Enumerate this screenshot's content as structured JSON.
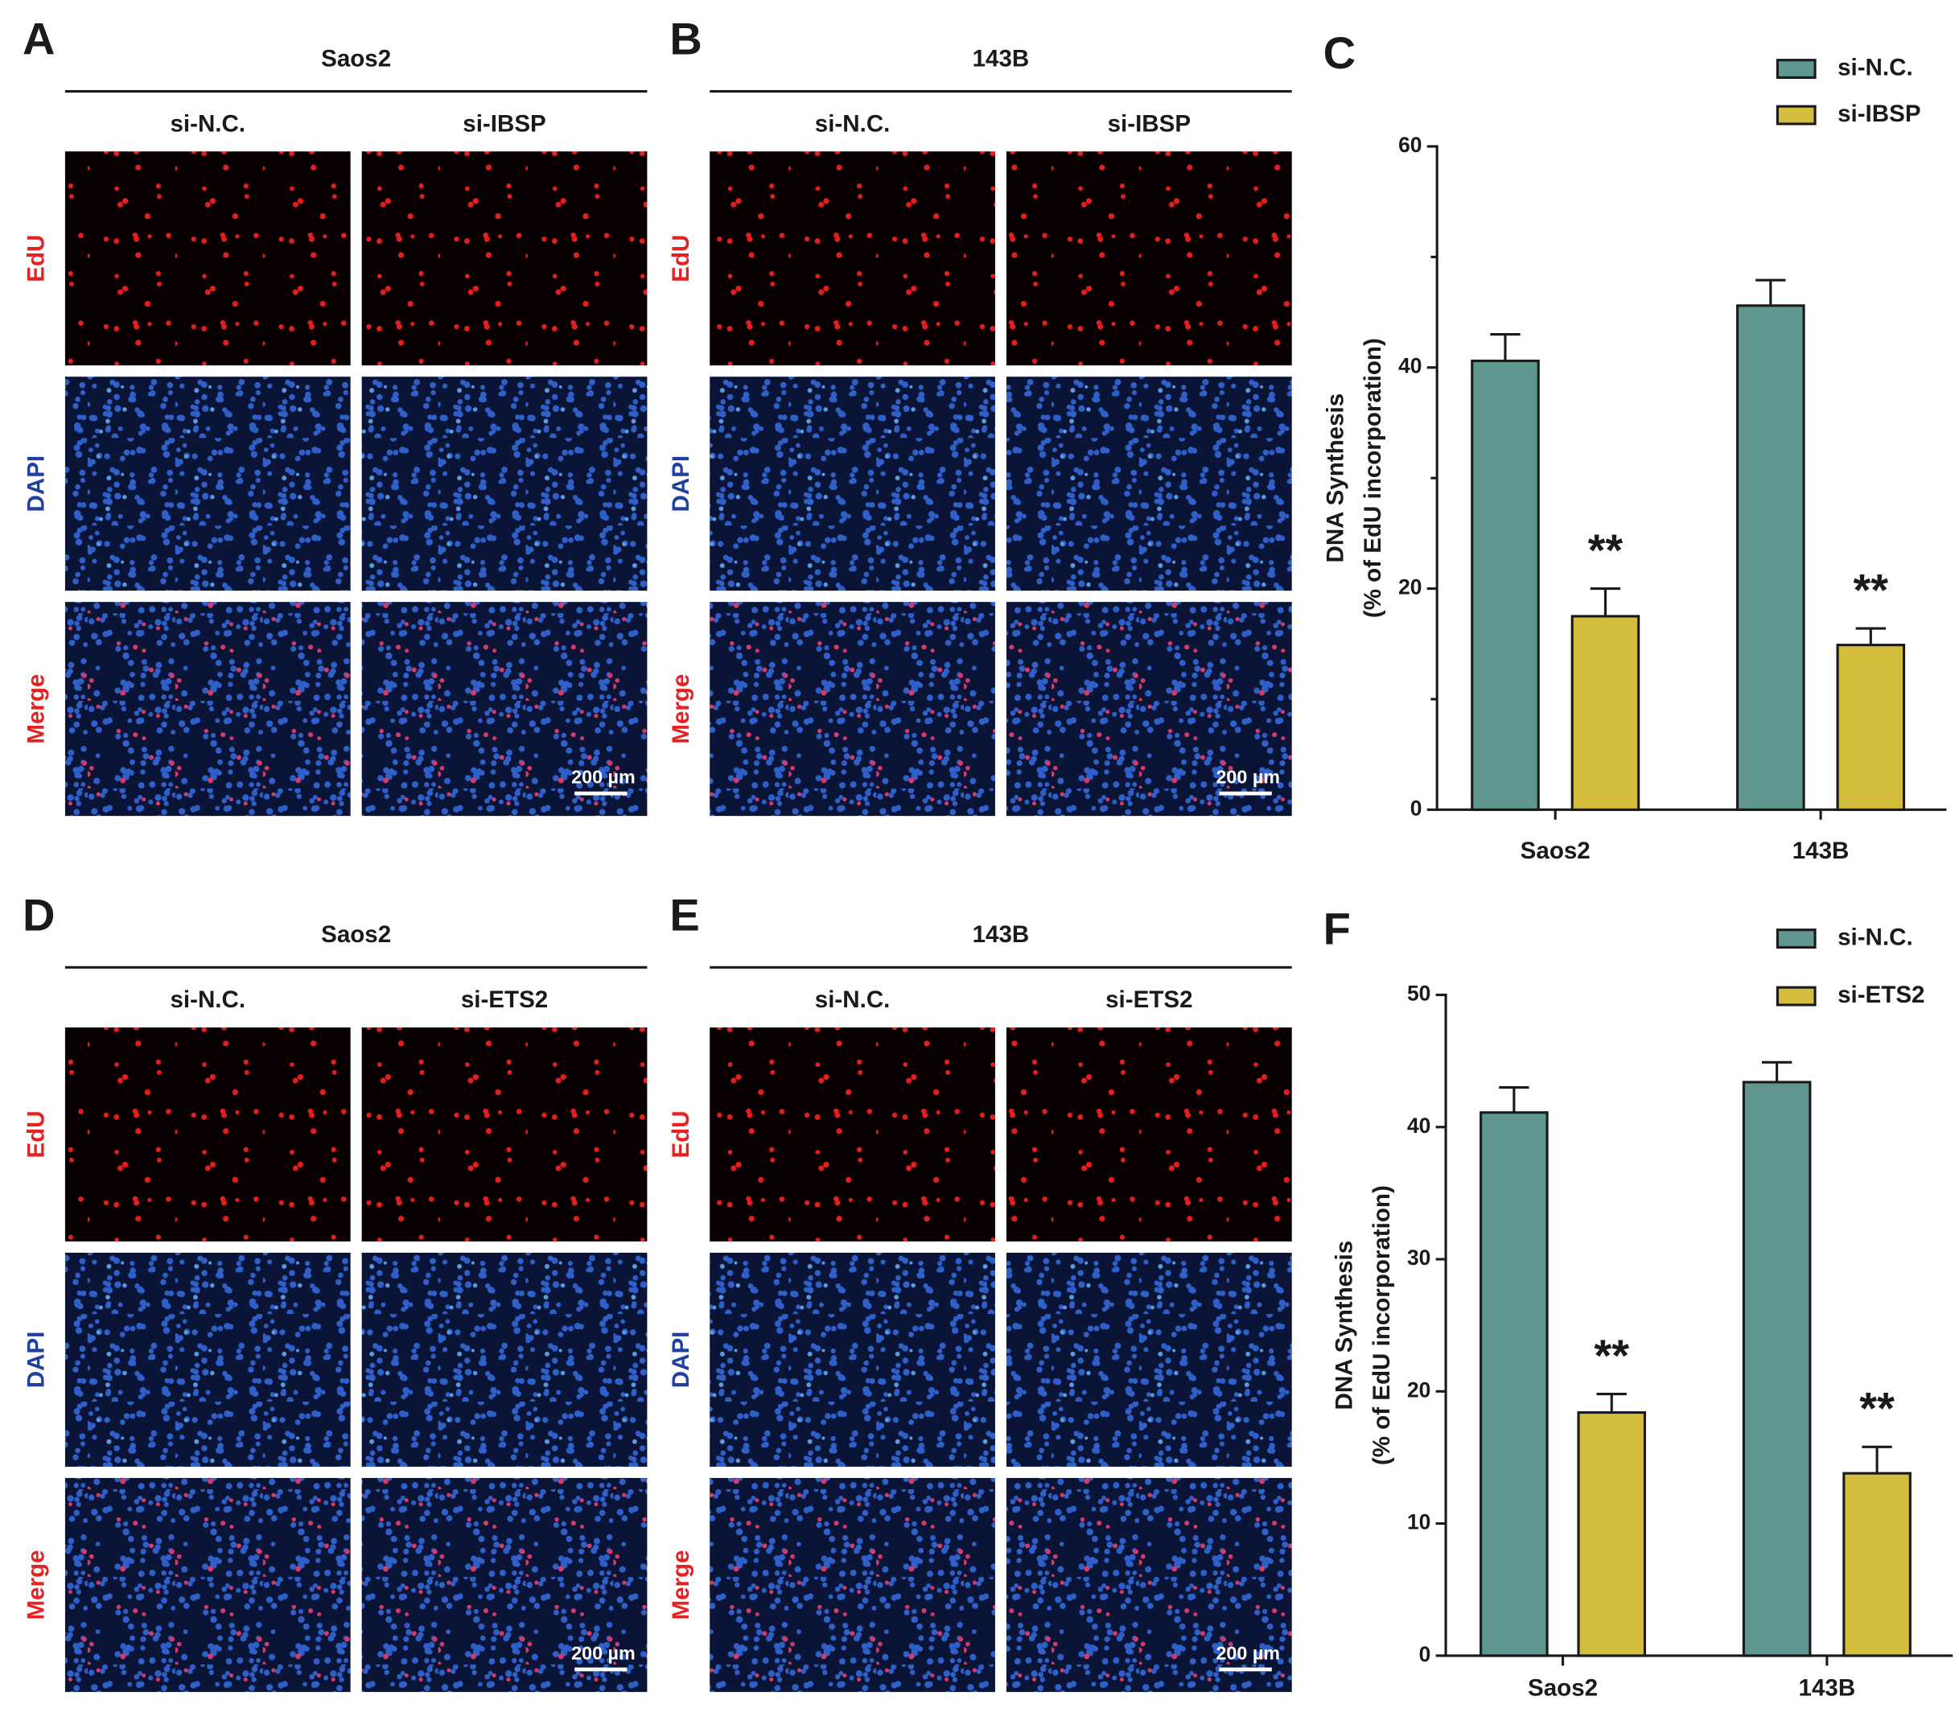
{
  "panels": [
    {
      "label": "A",
      "cell_line": "Saos2",
      "columns": [
        "si-N.C.",
        "si-IBSP"
      ],
      "rows": [
        "EdU",
        "DAPI",
        "Merge"
      ],
      "scale_bar": "200 µm"
    },
    {
      "label": "B",
      "cell_line": "143B",
      "columns": [
        "si-N.C.",
        "si-IBSP"
      ],
      "rows": [
        "EdU",
        "DAPI",
        "Merge"
      ],
      "scale_bar": "200 µm"
    },
    {
      "label": "D",
      "cell_line": "Saos2",
      "columns": [
        "si-N.C.",
        "si-ETS2"
      ],
      "rows": [
        "EdU",
        "DAPI",
        "Merge"
      ],
      "scale_bar": "200 µm"
    },
    {
      "label": "E",
      "cell_line": "143B",
      "columns": [
        "si-N.C.",
        "si-ETS2"
      ],
      "rows": [
        "EdU",
        "DAPI",
        "Merge"
      ],
      "scale_bar": "200 µm"
    }
  ],
  "chart_data": [
    {
      "type": "bar",
      "label": "C",
      "y_label": [
        "DNA Synthesis",
        "(% of EdU incorporation)"
      ],
      "categories": [
        "Saos2",
        "143B"
      ],
      "series": [
        {
          "name": "si-N.C.",
          "color": "#5f9690",
          "values": [
            40.6,
            45.6
          ],
          "errors": [
            2.4,
            2.3
          ]
        },
        {
          "name": "si-IBSP",
          "color": "#d4bd3c",
          "values": [
            17.5,
            14.9
          ],
          "errors": [
            2.5,
            1.5
          ],
          "markers": [
            "**",
            "**"
          ]
        }
      ],
      "ylim": [
        0,
        60
      ],
      "yticks": [
        0,
        20,
        40,
        60
      ],
      "yminorticks": [
        10,
        30,
        50
      ]
    },
    {
      "type": "bar",
      "label": "F",
      "y_label": [
        "DNA Synthesis",
        "(% of EdU incorporation)"
      ],
      "categories": [
        "Saos2",
        "143B"
      ],
      "series": [
        {
          "name": "si-N.C.",
          "color": "#5f9690",
          "values": [
            41.1,
            43.4
          ],
          "errors": [
            1.9,
            1.5
          ]
        },
        {
          "name": "si-ETS2",
          "color": "#d4bd3c",
          "values": [
            18.4,
            13.8
          ],
          "errors": [
            1.4,
            2.0
          ],
          "markers": [
            "**",
            "**"
          ]
        }
      ],
      "ylim": [
        0,
        50
      ],
      "yticks": [
        0,
        10,
        20,
        30,
        40,
        50
      ]
    }
  ]
}
